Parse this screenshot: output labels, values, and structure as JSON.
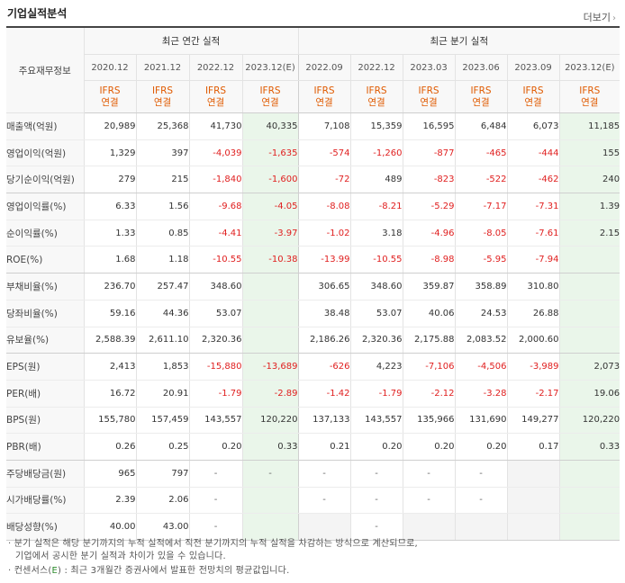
{
  "title": "기업실적분석",
  "more_label": "더보기",
  "more_arrow": "›",
  "label_header": "주요재무정보",
  "annual_header": "최근 연간 실적",
  "quarter_header": "최근 분기 실적",
  "periods": [
    "2020.12",
    "2021.12",
    "2022.12",
    "2023.12(E)",
    "2022.09",
    "2022.12",
    "2023.03",
    "2023.06",
    "2023.09",
    "2023.12(E)"
  ],
  "ifrs_label": "IFRS",
  "consol_label": "연결",
  "rows": [
    {
      "label": "매출액(억원)",
      "values": [
        "20,989",
        "25,368",
        "41,730",
        "40,335",
        "7,108",
        "15,359",
        "16,595",
        "6,484",
        "6,073",
        "11,185"
      ]
    },
    {
      "label": "영업이익(억원)",
      "values": [
        "1,329",
        "397",
        "-4,039",
        "-1,635",
        "-574",
        "-1,260",
        "-877",
        "-465",
        "-444",
        "155"
      ]
    },
    {
      "label": "당기순이익(억원)",
      "values": [
        "279",
        "215",
        "-1,840",
        "-1,600",
        "-72",
        "489",
        "-823",
        "-522",
        "-462",
        "240"
      ]
    },
    {
      "label": "영업이익률(%)",
      "values": [
        "6.33",
        "1.56",
        "-9.68",
        "-4.05",
        "-8.08",
        "-8.21",
        "-5.29",
        "-7.17",
        "-7.31",
        "1.39"
      ]
    },
    {
      "label": "순이익률(%)",
      "values": [
        "1.33",
        "0.85",
        "-4.41",
        "-3.97",
        "-1.02",
        "3.18",
        "-4.96",
        "-8.05",
        "-7.61",
        "2.15"
      ]
    },
    {
      "label": "ROE(%)",
      "values": [
        "1.68",
        "1.18",
        "-10.55",
        "-10.38",
        "-13.99",
        "-10.55",
        "-8.98",
        "-5.95",
        "-7.94",
        ""
      ]
    },
    {
      "label": "부채비율(%)",
      "values": [
        "236.70",
        "257.47",
        "348.60",
        "",
        "306.65",
        "348.60",
        "359.87",
        "358.89",
        "310.80",
        ""
      ]
    },
    {
      "label": "당좌비율(%)",
      "values": [
        "59.16",
        "44.36",
        "53.07",
        "",
        "38.48",
        "53.07",
        "40.06",
        "24.53",
        "26.88",
        ""
      ]
    },
    {
      "label": "유보율(%)",
      "values": [
        "2,588.39",
        "2,611.10",
        "2,320.36",
        "",
        "2,186.26",
        "2,320.36",
        "2,175.88",
        "2,083.52",
        "2,000.60",
        ""
      ]
    },
    {
      "label": "EPS(원)",
      "values": [
        "2,413",
        "1,853",
        "-15,880",
        "-13,689",
        "-626",
        "4,223",
        "-7,106",
        "-4,506",
        "-3,989",
        "2,073"
      ]
    },
    {
      "label": "PER(배)",
      "values": [
        "16.72",
        "20.91",
        "-1.79",
        "-2.89",
        "-1.42",
        "-1.79",
        "-2.12",
        "-3.28",
        "-2.17",
        "19.06"
      ]
    },
    {
      "label": "BPS(원)",
      "values": [
        "155,780",
        "157,459",
        "143,557",
        "120,220",
        "137,133",
        "143,557",
        "135,966",
        "131,690",
        "149,277",
        "120,220"
      ]
    },
    {
      "label": "PBR(배)",
      "values": [
        "0.26",
        "0.25",
        "0.20",
        "0.33",
        "0.21",
        "0.20",
        "0.20",
        "0.20",
        "0.17",
        "0.33"
      ]
    },
    {
      "label": "주당배당금(원)",
      "values": [
        "965",
        "797",
        "-",
        "-",
        "-",
        "-",
        "-",
        "-",
        "",
        ""
      ]
    },
    {
      "label": "시가배당률(%)",
      "values": [
        "2.39",
        "2.06",
        "-",
        "",
        "-",
        "-",
        "-",
        "-",
        "",
        ""
      ]
    },
    {
      "label": "배당성향(%)",
      "values": [
        "40.00",
        "43.00",
        "-",
        "",
        "",
        "-",
        "",
        "",
        "",
        ""
      ]
    }
  ],
  "notes": {
    "line1": "분기 실적은 해당 분기까지의 누적 실적에서 직전 분기까지의 누적 실적을 차감하는 방식으로 계산되므로,",
    "line2": "기업에서 공시한 분기 실적과 차이가 있을 수 있습니다.",
    "line3_prefix": "컨센서스(",
    "line3_e": "E",
    "line3_suffix": ") : 최근 3개월간 증권사에서 발표한 전망치의 평균값입니다."
  },
  "colors": {
    "negative": "#e02020",
    "ifrs": "#e05a00",
    "estimate_bg": "#eaf6ea",
    "consensus": "#2a8a2a"
  }
}
